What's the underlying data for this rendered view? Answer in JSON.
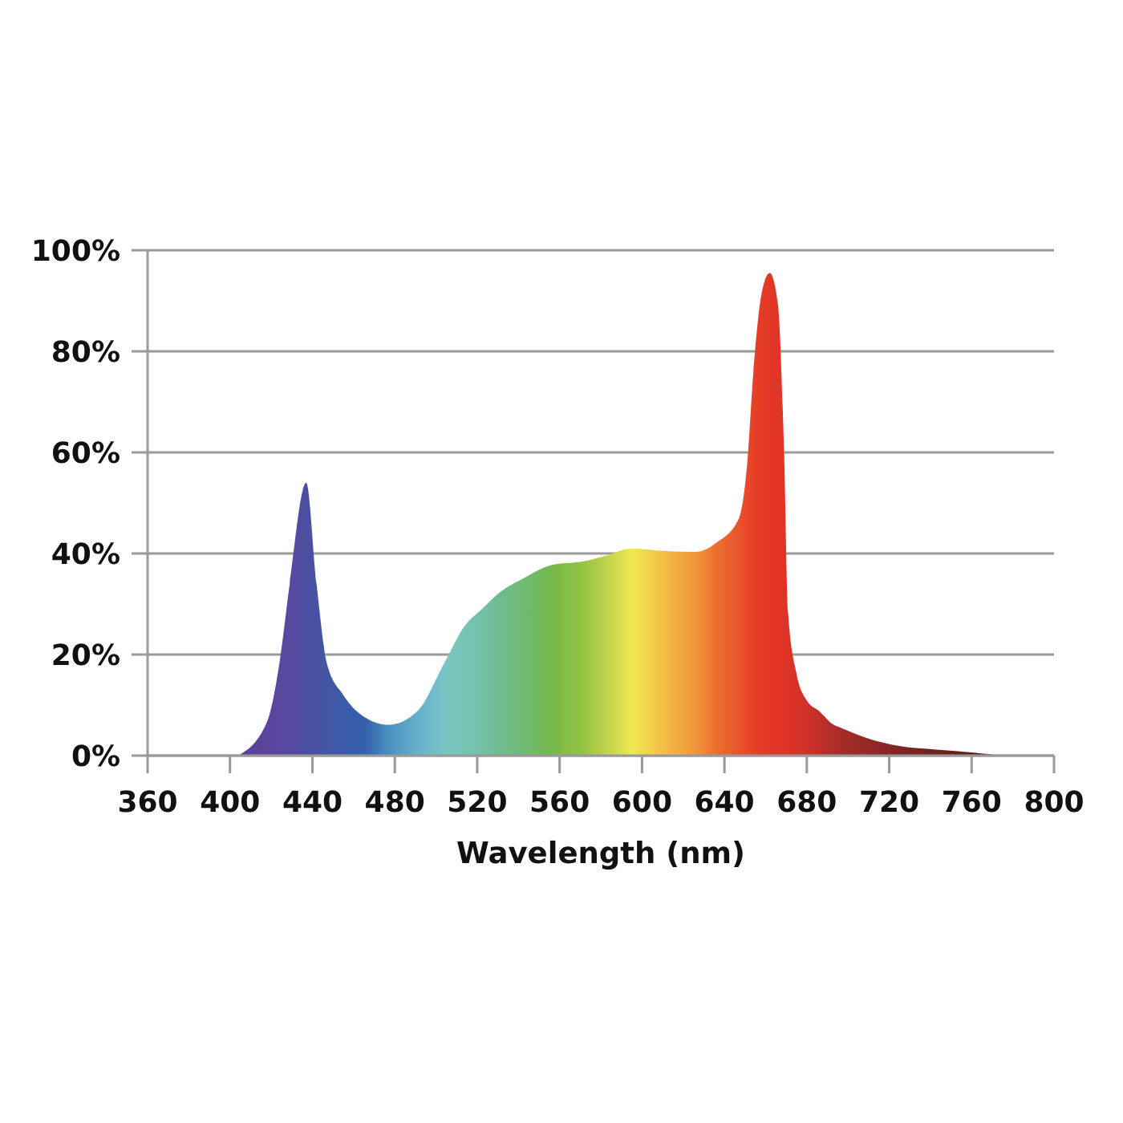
{
  "chart_data": {
    "type": "area",
    "xlabel": "Wavelength (nm)",
    "x": [
      404,
      418,
      424,
      429,
      437,
      442,
      447,
      455,
      465,
      477,
      491,
      504,
      514,
      522,
      530,
      543,
      556,
      571,
      582,
      595,
      610,
      626,
      636,
      647,
      651,
      654,
      658,
      662,
      666,
      669,
      671,
      675,
      680,
      686,
      693,
      696,
      709,
      725,
      743,
      761,
      774
    ],
    "series": [
      {
        "values": [
          0,
          6.7,
          18.3,
          34,
          54,
          34,
          18.3,
          12,
          7.7,
          6.1,
          8.8,
          18.3,
          25.7,
          28.9,
          32,
          35.2,
          37.7,
          38.4,
          39.5,
          41,
          40.5,
          40.3,
          42.1,
          46.9,
          57.5,
          75.5,
          91.3,
          95.5,
          89.2,
          59.6,
          27.8,
          16.2,
          10.9,
          8.8,
          6.1,
          5.6,
          3.5,
          1.9,
          1.2,
          0.6,
          0
        ],
        "colors": [
          "#5e3f98",
          "#5b449d",
          "#5a479f",
          "#574aa0",
          "#4c4ea1",
          "#4852a3",
          "#4356a5",
          "#3a5aa8",
          "#355fab",
          "#4a8fc0",
          "#66b0cb",
          "#78c5c6",
          "#77c3b4",
          "#74c0a5",
          "#70bc90",
          "#6ebb72",
          "#74b84a",
          "#96c243",
          "#bcd24a",
          "#efe852",
          "#f3c048",
          "#f1953a",
          "#ec6f30",
          "#e9542b",
          "#e8492a",
          "#e64228",
          "#e43c27",
          "#e23827",
          "#e03527",
          "#df3426",
          "#dd3326",
          "#d83226",
          "#cf3128",
          "#c02f29",
          "#b02d29",
          "#a72c28",
          "#932a26",
          "#7f2623",
          "#6e2220",
          "#5f1e1d",
          "#521b1b"
        ]
      }
    ],
    "xlim": [
      360,
      800
    ],
    "xticks": [
      360,
      400,
      440,
      480,
      520,
      560,
      600,
      640,
      680,
      720,
      760,
      800
    ],
    "ylim": [
      0,
      100
    ],
    "yticks": [
      {
        "value": 0,
        "label": "0%"
      },
      {
        "value": 20,
        "label": "20%"
      },
      {
        "value": 40,
        "label": "40%"
      },
      {
        "value": 60,
        "label": "60%"
      },
      {
        "value": 80,
        "label": "80%"
      },
      {
        "value": 100,
        "label": "100%"
      }
    ],
    "grid": "y"
  }
}
